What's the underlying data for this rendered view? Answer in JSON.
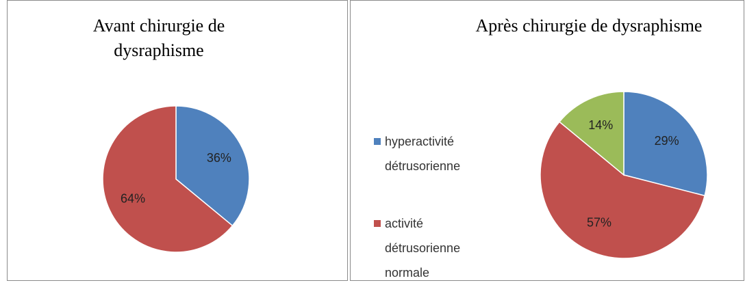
{
  "chart_data": [
    {
      "type": "pie",
      "title": "Avant chirurgie de dysraphisme",
      "values": [
        36,
        64
      ],
      "value_labels": [
        "36%",
        "64%"
      ],
      "colors": [
        "#4f81bd",
        "#c0504d"
      ]
    },
    {
      "type": "pie",
      "title": "Après chirurgie de dysraphisme",
      "categories": [
        "hyperactivité détrusorienne",
        "activité détrusorienne normale",
        null
      ],
      "values": [
        29,
        57,
        14
      ],
      "value_labels": [
        "29%",
        "57%",
        "14%"
      ],
      "colors": [
        "#4f81bd",
        "#c0504d",
        "#9bbb59"
      ]
    }
  ]
}
